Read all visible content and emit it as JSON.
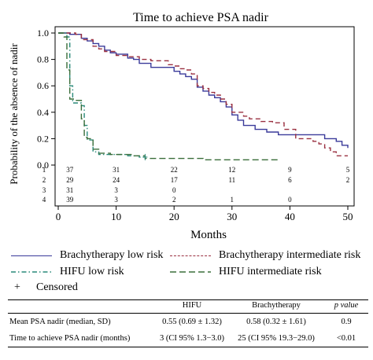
{
  "chart_data": {
    "type": "line",
    "title": "Time to achieve PSA nadir",
    "xlabel": "Months",
    "ylabel": "Probability of the absence of nadir",
    "xlim": [
      0,
      50
    ],
    "ylim": [
      0,
      1
    ],
    "x_ticks": [
      0,
      10,
      20,
      30,
      40,
      50
    ],
    "y_ticks": [
      "0.0",
      "0.2",
      "0.4",
      "0.6",
      "0.8",
      "1.0"
    ],
    "series": [
      {
        "name": "Brachytherapy low risk",
        "color": "#3a3a9a",
        "dash": "solid",
        "points": [
          [
            0,
            1.0
          ],
          [
            2,
            0.99
          ],
          [
            4,
            0.96
          ],
          [
            5,
            0.94
          ],
          [
            6,
            0.92
          ],
          [
            7,
            0.9
          ],
          [
            8,
            0.87
          ],
          [
            9,
            0.85
          ],
          [
            10,
            0.84
          ],
          [
            11,
            0.84
          ],
          [
            12,
            0.81
          ],
          [
            13,
            0.8
          ],
          [
            14,
            0.77
          ],
          [
            16,
            0.74
          ],
          [
            18,
            0.74
          ],
          [
            20,
            0.71
          ],
          [
            21,
            0.69
          ],
          [
            22,
            0.67
          ],
          [
            23,
            0.65
          ],
          [
            24,
            0.59
          ],
          [
            25,
            0.56
          ],
          [
            26,
            0.53
          ],
          [
            27,
            0.51
          ],
          [
            28,
            0.48
          ],
          [
            29,
            0.44
          ],
          [
            30,
            0.38
          ],
          [
            31,
            0.34
          ],
          [
            32,
            0.3
          ],
          [
            34,
            0.27
          ],
          [
            36,
            0.25
          ],
          [
            38,
            0.23
          ],
          [
            45,
            0.23
          ],
          [
            46,
            0.2
          ],
          [
            48,
            0.18
          ],
          [
            49,
            0.15
          ],
          [
            50,
            0.13
          ]
        ]
      },
      {
        "name": "Brachytherapy intermediate risk",
        "color": "#9a3040",
        "dash": "dash",
        "points": [
          [
            0,
            1.0
          ],
          [
            3,
            0.99
          ],
          [
            4,
            0.95
          ],
          [
            6,
            0.9
          ],
          [
            7,
            0.88
          ],
          [
            8,
            0.86
          ],
          [
            10,
            0.83
          ],
          [
            12,
            0.82
          ],
          [
            14,
            0.8
          ],
          [
            15,
            0.8
          ],
          [
            16,
            0.79
          ],
          [
            18,
            0.79
          ],
          [
            19,
            0.76
          ],
          [
            20,
            0.75
          ],
          [
            21,
            0.73
          ],
          [
            22,
            0.72
          ],
          [
            23,
            0.69
          ],
          [
            24,
            0.6
          ],
          [
            25,
            0.58
          ],
          [
            26,
            0.55
          ],
          [
            27,
            0.53
          ],
          [
            28,
            0.5
          ],
          [
            29,
            0.46
          ],
          [
            30,
            0.4
          ],
          [
            32,
            0.37
          ],
          [
            33,
            0.35
          ],
          [
            35,
            0.33
          ],
          [
            36,
            0.33
          ],
          [
            37,
            0.32
          ],
          [
            39,
            0.27
          ],
          [
            41,
            0.2
          ],
          [
            44,
            0.18
          ],
          [
            45,
            0.16
          ],
          [
            46,
            0.13
          ],
          [
            47,
            0.1
          ],
          [
            48,
            0.07
          ],
          [
            50,
            0.07
          ]
        ]
      },
      {
        "name": "HIFU low risk",
        "color": "#2a8a7a",
        "dash": "dashdot",
        "points": [
          [
            0,
            1.0
          ],
          [
            1.5,
            0.97
          ],
          [
            2,
            0.6
          ],
          [
            2.5,
            0.47
          ],
          [
            4,
            0.45
          ],
          [
            4.5,
            0.3
          ],
          [
            5,
            0.19
          ],
          [
            6,
            0.1
          ],
          [
            7,
            0.08
          ],
          [
            10,
            0.08
          ],
          [
            12,
            0.07
          ],
          [
            14,
            0.06
          ],
          [
            15,
            0.06
          ]
        ]
      },
      {
        "name": "HIFU intermediate risk",
        "color": "#3a6e3a",
        "dash": "longdash",
        "points": [
          [
            0,
            1.0
          ],
          [
            1,
            0.97
          ],
          [
            1.5,
            0.72
          ],
          [
            2,
            0.5
          ],
          [
            3,
            0.49
          ],
          [
            4,
            0.35
          ],
          [
            4.5,
            0.21
          ],
          [
            5,
            0.2
          ],
          [
            6,
            0.12
          ],
          [
            7,
            0.09
          ],
          [
            9,
            0.08
          ],
          [
            11,
            0.08
          ],
          [
            13,
            0.07
          ],
          [
            15,
            0.05
          ],
          [
            16,
            0.05
          ],
          [
            24,
            0.05
          ],
          [
            25,
            0.04
          ],
          [
            38,
            0.04
          ]
        ]
      }
    ],
    "censored_marker": [
      {
        "x": 15,
        "y": 0.06
      }
    ],
    "risk_table": {
      "rows": [
        {
          "id": "1",
          "counts": [
            {
              "x": 2,
              "n": "37"
            },
            {
              "x": 10,
              "n": "31"
            },
            {
              "x": 20,
              "n": "22"
            },
            {
              "x": 30,
              "n": "12"
            },
            {
              "x": 40,
              "n": "9"
            },
            {
              "x": 50,
              "n": "5"
            }
          ]
        },
        {
          "id": "2",
          "counts": [
            {
              "x": 2,
              "n": "29"
            },
            {
              "x": 10,
              "n": "24"
            },
            {
              "x": 20,
              "n": "17"
            },
            {
              "x": 30,
              "n": "11"
            },
            {
              "x": 40,
              "n": "6"
            },
            {
              "x": 50,
              "n": "2"
            }
          ]
        },
        {
          "id": "3",
          "counts": [
            {
              "x": 2,
              "n": "31"
            },
            {
              "x": 10,
              "n": "3"
            },
            {
              "x": 20,
              "n": "0"
            }
          ]
        },
        {
          "id": "4",
          "counts": [
            {
              "x": 2,
              "n": "39"
            },
            {
              "x": 10,
              "n": "3"
            },
            {
              "x": 20,
              "n": "2"
            },
            {
              "x": 30,
              "n": "1"
            },
            {
              "x": 40,
              "n": "0"
            }
          ]
        }
      ]
    }
  },
  "legend": {
    "brachy_low": "Brachytherapy low risk",
    "brachy_int": "Brachytherapy intermediate risk",
    "hifu_low": "HIFU low risk",
    "hifu_int": "HIFU intermediate risk",
    "censored_symbol": "+",
    "censored": "Censored"
  },
  "summary_table": {
    "headers": [
      "",
      "HIFU",
      "Brachytherapy",
      "p value"
    ],
    "rows": [
      {
        "label": "Mean PSA nadir (median, SD)",
        "hifu": "0.55 (0.69 ± 1.32)",
        "brachy": "0.58 (0.32 ± 1.61)",
        "p": "0.9"
      },
      {
        "label": "Time to achieve PSA nadir (months)",
        "hifu": "3 (CI 95% 1.3−3.0)",
        "brachy": "25 (CI 95% 19.3−29.0)",
        "p": "<0.01"
      }
    ]
  }
}
